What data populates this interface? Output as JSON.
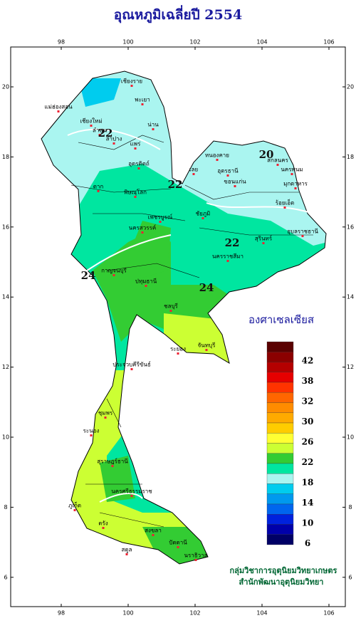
{
  "map": {
    "title": "อุณหภูมิเฉลี่ยปี  2554",
    "lon_ticks": [
      98,
      100,
      102,
      104,
      106
    ],
    "lat_ticks": [
      20,
      18,
      16,
      14,
      12,
      10,
      8,
      6
    ],
    "legend": {
      "title": "องศาเซลเซียส",
      "colors": [
        "#5a0000",
        "#8b0000",
        "#b40000",
        "#e60000",
        "#ff3300",
        "#ff6600",
        "#ff8c00",
        "#ffaa00",
        "#ffcc00",
        "#ffff33",
        "#ccff33",
        "#33cc33",
        "#00e6a0",
        "#aaf5f0",
        "#00ccee",
        "#0099ee",
        "#0066ee",
        "#0022dd",
        "#0000aa",
        "#000066"
      ],
      "labels": [
        42,
        38,
        32,
        30,
        26,
        22,
        18,
        14,
        10,
        6
      ]
    },
    "places": [
      "เชียงราย",
      "พะเยา",
      "น่าน",
      "เชียงใหม่",
      "ลำพูน",
      "ลำปาง",
      "แพร่",
      "แม่ฮ่องสอน",
      "อุตรดิตถ์",
      "ตาก",
      "หนองคาย",
      "อุดรธานี",
      "สกลนคร",
      "นครพนม",
      "เลย",
      "ขอนแก่น",
      "มุกดาหาร",
      "ร้อยเอ็ด",
      "อุบลราชธานี",
      "สุรินทร์",
      "นครราชสีมา",
      "ชัยภูมิ",
      "พิษณุโลก",
      "เพชรบูรณ์",
      "นครสวรรค์",
      "กาญจนบุรี",
      "ปทุมธานี",
      "ชลบุรี",
      "ระยอง",
      "จันทบุรี",
      "ประจวบคีรีขันธ์",
      "ชุมพร",
      "ระนอง",
      "สุราษฎร์ธานี",
      "นครศรีธรรมราช",
      "ภูเก็ต",
      "ตรัง",
      "สงขลา",
      "ปัตตานี",
      "นราธิวาส",
      "สตูล"
    ],
    "contour_labels": [
      22,
      22,
      20,
      24,
      24,
      22
    ],
    "credits": [
      "กลุ่มวิชาการอุตุนิยมวิทยาเกษตร",
      "สำนักพัฒนาอุตุนิยมวิทยา"
    ]
  }
}
